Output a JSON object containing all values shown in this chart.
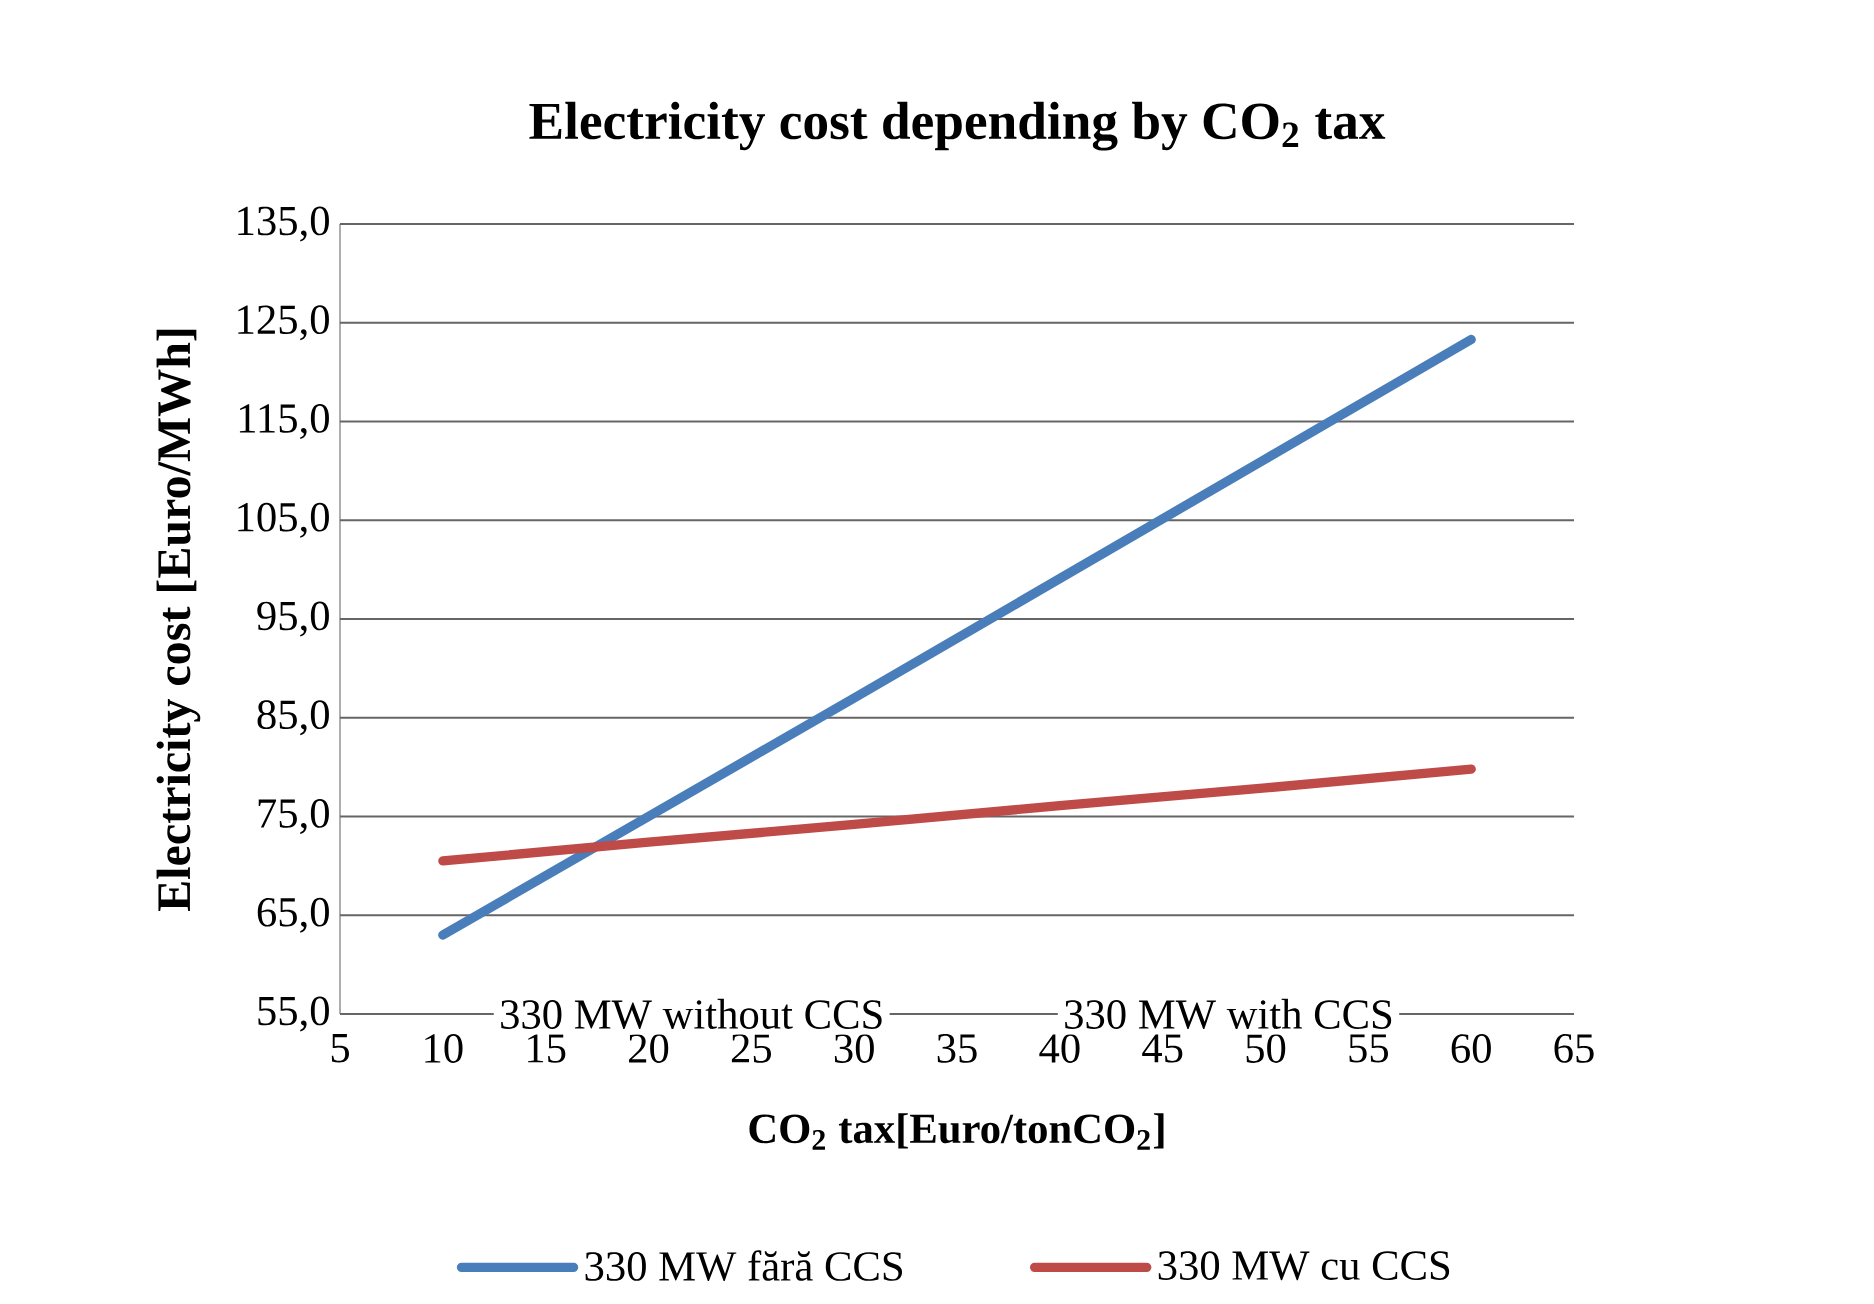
{
  "chart_data": {
    "type": "line",
    "title": "Electricity cost depending by CO$_{2}$ tax",
    "xlabel": "CO$_{2}$ tax[Euro/tonCO$_{2}$]",
    "ylabel": "Electricity cost [Euro/MWh]",
    "x": [
      10,
      20,
      30,
      40,
      50,
      60
    ],
    "series": [
      {
        "name": "330 MW fără CCS",
        "color": "#4a7ebb",
        "values": [
          63.0,
          75.0,
          87.0,
          99.1,
          111.2,
          123.3
        ]
      },
      {
        "name": "330 MW cu CCS",
        "color": "#be4b48",
        "values": [
          70.5,
          72.4,
          74.2,
          76.1,
          77.9,
          79.8
        ]
      }
    ],
    "xlim": [
      5,
      65
    ],
    "xticks": [
      5,
      10,
      15,
      20,
      25,
      30,
      35,
      40,
      45,
      50,
      55,
      60,
      65
    ],
    "ylim": [
      55,
      135
    ],
    "yticks": [
      {
        "value": 55,
        "label": "55,0"
      },
      {
        "value": 65,
        "label": "65,0"
      },
      {
        "value": 75,
        "label": "75,0"
      },
      {
        "value": 85,
        "label": "85,0"
      },
      {
        "value": 95,
        "label": "95,0"
      },
      {
        "value": 105,
        "label": "105,0"
      },
      {
        "value": 115,
        "label": "115,0"
      },
      {
        "value": 125,
        "label": "125,0"
      },
      {
        "value": 135,
        "label": "135,0"
      }
    ],
    "annotations": [
      "330 MW without CCS",
      "330 MW with CCS"
    ],
    "grid": "y",
    "legend": "bottom",
    "marker": "none",
    "line_style": "solid"
  }
}
